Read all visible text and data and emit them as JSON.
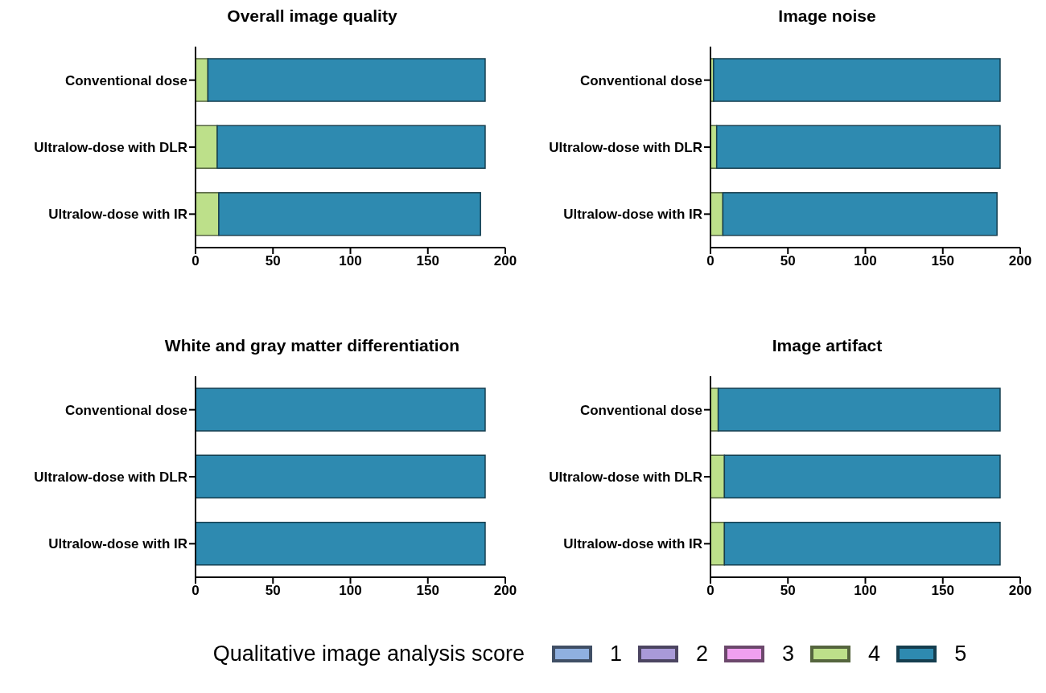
{
  "chart_data": [
    {
      "type": "bar",
      "orientation": "horizontal",
      "stacked": true,
      "title": "Overall image quality",
      "categories": [
        "Conventional dose",
        "Ultralow-dose with DLR",
        "Ultralow-dose with IR"
      ],
      "xlim": [
        0,
        200
      ],
      "xticks": [
        0,
        50,
        100,
        150,
        200
      ],
      "series": [
        {
          "color": "#8fb0e0",
          "values": [
            0,
            0,
            0
          ]
        },
        {
          "color": "#a99ad8",
          "values": [
            0,
            0,
            0
          ]
        },
        {
          "color": "#f0a0f0",
          "values": [
            0,
            0,
            0
          ]
        },
        {
          "color": "#bde08a",
          "values": [
            8,
            14,
            15
          ]
        },
        {
          "color": "#2e8ab0",
          "values": [
            179,
            173,
            169
          ]
        }
      ]
    },
    {
      "type": "bar",
      "orientation": "horizontal",
      "stacked": true,
      "title": "Image noise",
      "categories": [
        "Conventional dose",
        "Ultralow-dose with DLR",
        "Ultralow-dose with IR"
      ],
      "xlim": [
        0,
        200
      ],
      "xticks": [
        0,
        50,
        100,
        150,
        200
      ],
      "series": [
        {
          "color": "#8fb0e0",
          "values": [
            0,
            0,
            0
          ]
        },
        {
          "color": "#a99ad8",
          "values": [
            0,
            0,
            0
          ]
        },
        {
          "color": "#f0a0f0",
          "values": [
            0,
            0,
            0
          ]
        },
        {
          "color": "#bde08a",
          "values": [
            2,
            4,
            8
          ]
        },
        {
          "color": "#2e8ab0",
          "values": [
            185,
            183,
            177
          ]
        }
      ]
    },
    {
      "type": "bar",
      "orientation": "horizontal",
      "stacked": true,
      "title": "White and gray matter differentiation",
      "categories": [
        "Conventional dose",
        "Ultralow-dose with DLR",
        "Ultralow-dose with IR"
      ],
      "xlim": [
        0,
        200
      ],
      "xticks": [
        0,
        50,
        100,
        150,
        200
      ],
      "series": [
        {
          "color": "#8fb0e0",
          "values": [
            0,
            0,
            0
          ]
        },
        {
          "color": "#a99ad8",
          "values": [
            0,
            0,
            0
          ]
        },
        {
          "color": "#f0a0f0",
          "values": [
            0,
            0,
            0
          ]
        },
        {
          "color": "#bde08a",
          "values": [
            0,
            0,
            0
          ]
        },
        {
          "color": "#2e8ab0",
          "values": [
            187,
            187,
            187
          ]
        }
      ]
    },
    {
      "type": "bar",
      "orientation": "horizontal",
      "stacked": true,
      "title": "Image artifact",
      "categories": [
        "Conventional dose",
        "Ultralow-dose with DLR",
        "Ultralow-dose with IR"
      ],
      "xlim": [
        0,
        200
      ],
      "xticks": [
        0,
        50,
        100,
        150,
        200
      ],
      "legend": "bottom",
      "legend_title": "Qualitative image analysis score",
      "series": [
        {
          "name": "1",
          "color": "#8fb0e0",
          "values": [
            0,
            0,
            0
          ]
        },
        {
          "name": "2",
          "color": "#a99ad8",
          "values": [
            0,
            0,
            0
          ]
        },
        {
          "name": "3",
          "color": "#f0a0f0",
          "values": [
            0,
            0,
            0
          ]
        },
        {
          "name": "4",
          "color": "#bde08a",
          "values": [
            5,
            9,
            9
          ]
        },
        {
          "name": "5",
          "color": "#2e8ab0",
          "values": [
            182,
            178,
            178
          ]
        }
      ]
    }
  ]
}
